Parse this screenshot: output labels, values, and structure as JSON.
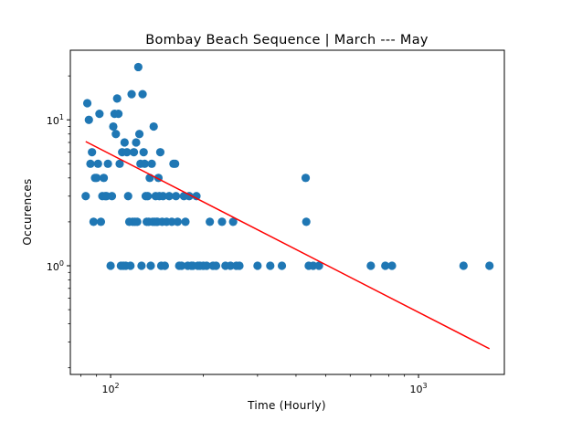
{
  "chart_data": {
    "type": "scatter",
    "title": "Bombay Beach Sequence | March --- May",
    "xlabel": "Time (Hourly)",
    "ylabel": "Occurences",
    "xscale": "log",
    "yscale": "log",
    "xlim": [
      74,
      1900
    ],
    "ylim": [
      0.18,
      30
    ],
    "x_ticks": [
      {
        "value": 100,
        "base": "10",
        "exp": "2"
      },
      {
        "value": 1000,
        "base": "10",
        "exp": "3"
      }
    ],
    "y_ticks": [
      {
        "value": 1,
        "base": "10",
        "exp": "0"
      },
      {
        "value": 10,
        "base": "10",
        "exp": "1"
      }
    ],
    "grid": false,
    "marker_color": "#1f77b4",
    "line_color": "#ff0000",
    "series": [
      {
        "kind": "points",
        "points": [
          [
            83,
            3
          ],
          [
            84,
            13
          ],
          [
            85,
            10
          ],
          [
            86,
            5
          ],
          [
            87,
            6
          ],
          [
            88,
            2
          ],
          [
            89,
            4
          ],
          [
            90,
            4
          ],
          [
            91,
            5
          ],
          [
            92,
            11
          ],
          [
            93,
            2
          ],
          [
            94,
            3
          ],
          [
            95,
            4
          ],
          [
            96,
            3
          ],
          [
            97,
            3
          ],
          [
            98,
            5
          ],
          [
            100,
            1
          ],
          [
            101,
            3
          ],
          [
            102,
            9
          ],
          [
            103,
            11
          ],
          [
            104,
            8
          ],
          [
            105,
            14
          ],
          [
            106,
            11
          ],
          [
            107,
            5
          ],
          [
            108,
            1
          ],
          [
            109,
            6
          ],
          [
            110,
            1
          ],
          [
            111,
            7
          ],
          [
            112,
            1
          ],
          [
            113,
            6
          ],
          [
            114,
            3
          ],
          [
            115,
            2
          ],
          [
            116,
            1
          ],
          [
            117,
            15
          ],
          [
            118,
            2
          ],
          [
            119,
            6
          ],
          [
            120,
            2
          ],
          [
            121,
            7
          ],
          [
            122,
            2
          ],
          [
            123,
            23
          ],
          [
            124,
            8
          ],
          [
            125,
            5
          ],
          [
            126,
            1
          ],
          [
            127,
            15
          ],
          [
            128,
            6
          ],
          [
            129,
            5
          ],
          [
            130,
            3
          ],
          [
            131,
            2
          ],
          [
            132,
            3
          ],
          [
            133,
            2
          ],
          [
            134,
            4
          ],
          [
            135,
            1
          ],
          [
            136,
            5
          ],
          [
            137,
            2
          ],
          [
            138,
            9
          ],
          [
            139,
            2
          ],
          [
            140,
            3
          ],
          [
            141,
            2
          ],
          [
            142,
            2
          ],
          [
            143,
            4
          ],
          [
            144,
            3
          ],
          [
            145,
            6
          ],
          [
            146,
            1
          ],
          [
            147,
            2
          ],
          [
            148,
            3
          ],
          [
            150,
            1
          ],
          [
            152,
            2
          ],
          [
            155,
            3
          ],
          [
            158,
            2
          ],
          [
            160,
            5
          ],
          [
            162,
            5
          ],
          [
            163,
            3
          ],
          [
            165,
            2
          ],
          [
            167,
            1
          ],
          [
            170,
            1
          ],
          [
            173,
            3
          ],
          [
            175,
            2
          ],
          [
            178,
            1
          ],
          [
            180,
            3
          ],
          [
            183,
            1
          ],
          [
            185,
            1
          ],
          [
            190,
            3
          ],
          [
            192,
            1
          ],
          [
            195,
            1
          ],
          [
            200,
            1
          ],
          [
            205,
            1
          ],
          [
            210,
            2
          ],
          [
            215,
            1
          ],
          [
            220,
            1
          ],
          [
            230,
            2
          ],
          [
            236,
            1
          ],
          [
            245,
            1
          ],
          [
            250,
            2
          ],
          [
            256,
            1
          ],
          [
            262,
            1
          ],
          [
            300,
            1
          ],
          [
            330,
            1
          ],
          [
            360,
            1
          ],
          [
            430,
            4
          ],
          [
            432,
            2
          ],
          [
            440,
            1
          ],
          [
            455,
            1
          ],
          [
            475,
            1
          ],
          [
            700,
            1
          ],
          [
            780,
            1
          ],
          [
            820,
            1
          ],
          [
            1400,
            1
          ],
          [
            1700,
            1
          ]
        ]
      },
      {
        "kind": "fit",
        "points": [
          [
            83,
            7.1
          ],
          [
            1700,
            0.27
          ]
        ]
      }
    ]
  }
}
